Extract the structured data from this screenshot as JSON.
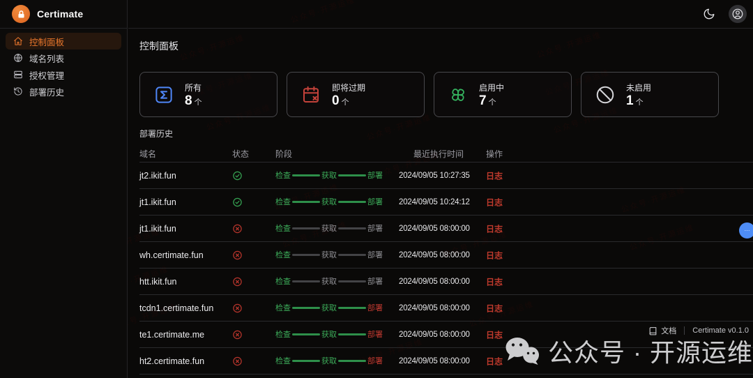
{
  "brand": {
    "name": "Certimate",
    "logo_icon": "lock-icon"
  },
  "sidebar": {
    "items": [
      {
        "label": "控制面板",
        "icon": "home-icon",
        "active": true
      },
      {
        "label": "域名列表",
        "icon": "globe-icon",
        "active": false
      },
      {
        "label": "授权管理",
        "icon": "server-icon",
        "active": false
      },
      {
        "label": "部署历史",
        "icon": "history-icon",
        "active": false
      }
    ]
  },
  "topbar": {
    "theme_toggle_icon": "moon-icon",
    "user_icon": "user-circle-icon"
  },
  "page": {
    "title": "控制面板"
  },
  "stats": [
    {
      "label": "所有",
      "value": "8",
      "unit": "个",
      "icon": "sigma-icon",
      "color": "#4f86f7"
    },
    {
      "label": "即将过期",
      "value": "0",
      "unit": "个",
      "icon": "calendar-x-icon",
      "color": "#c4423a"
    },
    {
      "label": "启用中",
      "value": "7",
      "unit": "个",
      "icon": "fan-icon",
      "color": "#35b45f"
    },
    {
      "label": "未启用",
      "value": "1",
      "unit": "个",
      "icon": "ban-icon",
      "color": "#d6d6da"
    }
  ],
  "history": {
    "title": "部署历史",
    "columns": {
      "domain": "域名",
      "status": "状态",
      "stage": "阶段",
      "time": "最近执行时间",
      "action": "操作"
    },
    "stage_labels": [
      "检查",
      "获取",
      "部署"
    ],
    "action_label": "日志",
    "rows": [
      {
        "domain": "jt2.ikit.fun",
        "status": "success",
        "stages": [
          "ok",
          "ok",
          "ok"
        ],
        "time": "2024/09/05 10:27:35"
      },
      {
        "domain": "jt1.ikit.fun",
        "status": "success",
        "stages": [
          "ok",
          "ok",
          "ok"
        ],
        "time": "2024/09/05 10:24:12"
      },
      {
        "domain": "jt1.ikit.fun",
        "status": "fail",
        "stages": [
          "ok",
          "pend",
          "pend"
        ],
        "time": "2024/09/05 08:00:00"
      },
      {
        "domain": "wh.certimate.fun",
        "status": "fail",
        "stages": [
          "ok",
          "pend",
          "pend"
        ],
        "time": "2024/09/05 08:00:00"
      },
      {
        "domain": "htt.ikit.fun",
        "status": "fail",
        "stages": [
          "ok",
          "pend",
          "pend"
        ],
        "time": "2024/09/05 08:00:00"
      },
      {
        "domain": "tcdn1.certimate.fun",
        "status": "fail",
        "stages": [
          "ok",
          "ok",
          "fail"
        ],
        "time": "2024/09/05 08:00:00"
      },
      {
        "domain": "te1.certimate.me",
        "status": "fail",
        "stages": [
          "ok",
          "ok",
          "fail"
        ],
        "time": "2024/09/05 08:00:00"
      },
      {
        "domain": "ht2.certimate.fun",
        "status": "fail",
        "stages": [
          "ok",
          "ok",
          "fail"
        ],
        "time": "2024/09/05 08:00:00"
      }
    ]
  },
  "footer": {
    "docs_label": "文档",
    "docs_icon": "book-icon",
    "version": "Certimate v0.1.0"
  },
  "watermark": {
    "icon": "wechat-icon",
    "text": "公众号 · 开源运维",
    "noise_text": "公众号·开源运维"
  },
  "colors": {
    "accent_orange": "#e8762c",
    "success_green": "#3aa856",
    "error_red": "#b5342b",
    "link_red": "#bf3a2d",
    "stat_blue": "#4f86f7",
    "float_badge_blue": "#4e8df6"
  }
}
